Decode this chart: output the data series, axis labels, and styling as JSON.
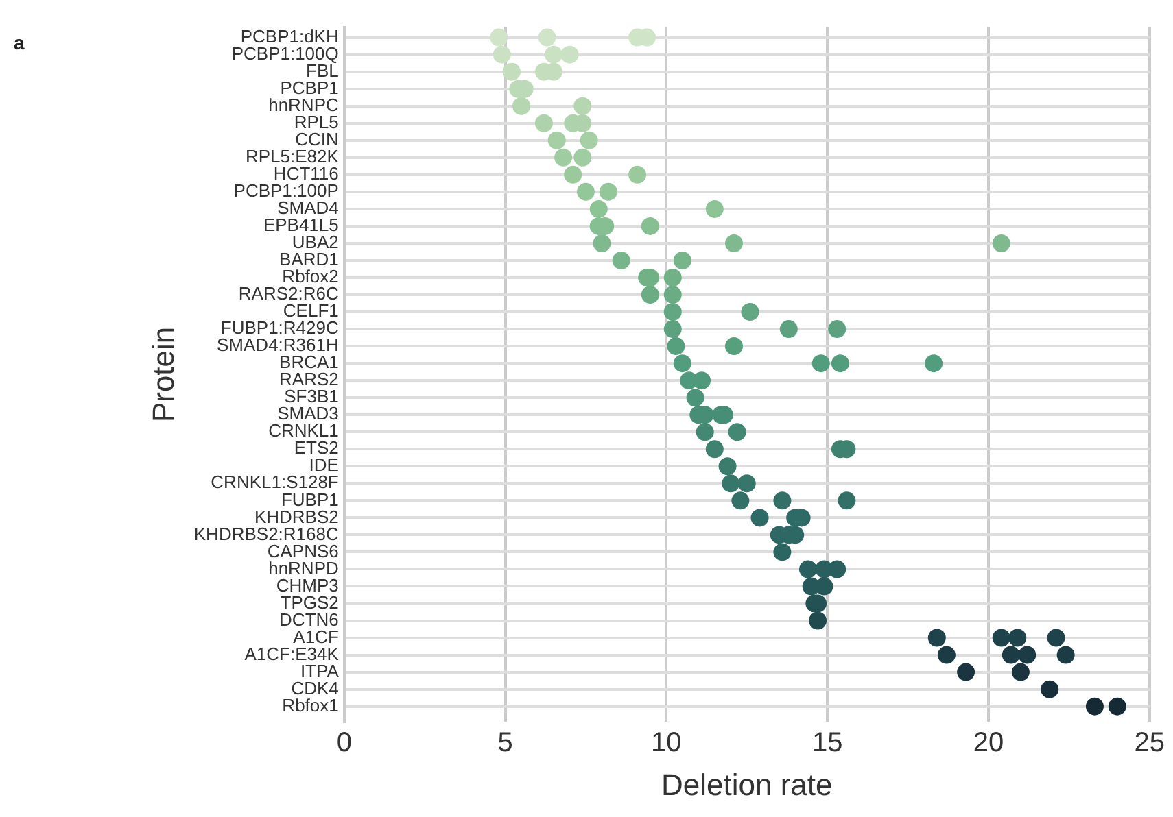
{
  "chart_data": {
    "type": "scatter",
    "orientation": "horizontal",
    "xlabel": "Deletion rate",
    "ylabel": "Protein",
    "annotations": [
      "a"
    ],
    "categories": [
      "PCBP1:dKH",
      "PCBP1:100Q",
      "FBL",
      "PCBP1",
      "hnRNPC",
      "RPL5",
      "CCIN",
      "RPL5:E82K",
      "HCT116",
      "PCBP1:100P",
      "SMAD4",
      "EPB41L5",
      "UBA2",
      "BARD1",
      "Rbfox2",
      "RARS2:R6C",
      "CELF1",
      "FUBP1:R429C",
      "SMAD4:R361H",
      "BRCA1",
      "RARS2",
      "SF3B1",
      "SMAD3",
      "CRNKL1",
      "ETS2",
      "IDE",
      "CRNKL1:S128F",
      "FUBP1",
      "KHDRBS2",
      "KHDRBS2:R168C",
      "CAPNS6",
      "hnRNPD",
      "CHMP3",
      "TPGS2",
      "DCTN6",
      "A1CF",
      "A1CF:E34K",
      "ITPA",
      "CDK4",
      "Rbfox1"
    ],
    "series": [
      {
        "x": [
          "PCBP1:dKH",
          "PCBP1:dKH",
          "PCBP1:dKH",
          "PCBP1:dKH",
          "PCBP1:100Q",
          "PCBP1:100Q",
          "PCBP1:100Q",
          "FBL",
          "FBL",
          "FBL",
          "PCBP1",
          "PCBP1",
          "hnRNPC",
          "hnRNPC",
          "RPL5",
          "RPL5",
          "RPL5",
          "CCIN",
          "CCIN",
          "RPL5:E82K",
          "RPL5:E82K",
          "HCT116",
          "HCT116",
          "PCBP1:100P",
          "PCBP1:100P",
          "SMAD4",
          "SMAD4",
          "EPB41L5",
          "EPB41L5",
          "EPB41L5",
          "UBA2",
          "UBA2",
          "UBA2",
          "BARD1",
          "BARD1",
          "Rbfox2",
          "Rbfox2",
          "Rbfox2",
          "RARS2:R6C",
          "RARS2:R6C",
          "CELF1",
          "CELF1",
          "FUBP1:R429C",
          "FUBP1:R429C",
          "FUBP1:R429C",
          "SMAD4:R361H",
          "SMAD4:R361H",
          "BRCA1",
          "BRCA1",
          "BRCA1",
          "BRCA1",
          "RARS2",
          "RARS2",
          "SF3B1",
          "SMAD3",
          "SMAD3",
          "SMAD3",
          "SMAD3",
          "CRNKL1",
          "CRNKL1",
          "ETS2",
          "ETS2",
          "ETS2",
          "IDE",
          "CRNKL1:S128F",
          "CRNKL1:S128F",
          "FUBP1",
          "FUBP1",
          "FUBP1",
          "KHDRBS2",
          "KHDRBS2",
          "KHDRBS2",
          "KHDRBS2:R168C",
          "KHDRBS2:R168C",
          "KHDRBS2:R168C",
          "CAPNS6",
          "hnRNPD",
          "hnRNPD",
          "hnRNPD",
          "CHMP3",
          "CHMP3",
          "TPGS2",
          "TPGS2",
          "DCTN6",
          "A1CF",
          "A1CF",
          "A1CF",
          "A1CF",
          "A1CF:E34K",
          "A1CF:E34K",
          "A1CF:E34K",
          "A1CF:E34K",
          "ITPA",
          "ITPA",
          "CDK4",
          "Rbfox1",
          "Rbfox1"
        ],
        "values": [
          4.8,
          6.3,
          9.1,
          9.4,
          4.9,
          6.5,
          7.0,
          5.2,
          6.2,
          6.5,
          5.4,
          5.6,
          5.5,
          7.4,
          6.2,
          7.1,
          7.4,
          6.6,
          7.6,
          6.8,
          7.4,
          7.1,
          9.1,
          7.5,
          8.2,
          7.9,
          11.5,
          7.9,
          8.1,
          9.5,
          8.0,
          12.1,
          20.4,
          8.6,
          10.5,
          9.4,
          9.5,
          10.2,
          9.5,
          10.2,
          10.2,
          12.6,
          10.2,
          13.8,
          15.3,
          10.3,
          12.1,
          10.5,
          14.8,
          15.4,
          18.3,
          10.7,
          11.1,
          10.9,
          11.0,
          11.2,
          11.7,
          11.8,
          11.2,
          12.2,
          11.5,
          15.4,
          15.6,
          11.9,
          12.0,
          12.5,
          12.3,
          13.6,
          15.6,
          12.9,
          14.0,
          14.2,
          13.5,
          13.8,
          14.0,
          13.6,
          14.4,
          14.9,
          15.3,
          14.5,
          14.9,
          14.6,
          14.7,
          14.7,
          18.4,
          20.4,
          20.9,
          22.1,
          18.7,
          20.7,
          21.2,
          22.4,
          19.3,
          21.0,
          21.9,
          23.3,
          24.0
        ],
        "colors": [
          "#d0e4c8",
          "#d0e4c8",
          "#d0e4c8",
          "#d0e4c8",
          "#cae1c3",
          "#cae1c3",
          "#cae1c3",
          "#c3ddbd",
          "#c3ddbd",
          "#c3ddbd",
          "#bcdab7",
          "#bcdab7",
          "#b5d6b1",
          "#b5d6b1",
          "#aed3ac",
          "#aed3ac",
          "#aed3ac",
          "#a7cfa6",
          "#a7cfa6",
          "#a0cca1",
          "#a0cca1",
          "#9ac99c",
          "#9ac99c",
          "#93c699",
          "#93c699",
          "#8cc496",
          "#8cc496",
          "#85bf92",
          "#85bf92",
          "#85bf92",
          "#7eba8e",
          "#7eba8e",
          "#7eba8e",
          "#77b68a",
          "#77b68a",
          "#70b186",
          "#70b186",
          "#70b186",
          "#6aac84",
          "#6aac84",
          "#63a782",
          "#63a782",
          "#5ca280",
          "#5ca280",
          "#5ca280",
          "#56a07e",
          "#56a07e",
          "#529d7d",
          "#529d7d",
          "#529d7d",
          "#529d7d",
          "#4f9a7c",
          "#4f9a7c",
          "#4b9479",
          "#478e76",
          "#478e76",
          "#478e76",
          "#478e76",
          "#438873",
          "#438873",
          "#3f8270",
          "#3f8270",
          "#3f8270",
          "#3b7c6d",
          "#37766a",
          "#37766a",
          "#337068",
          "#337068",
          "#337068",
          "#2f6b66",
          "#2f6b66",
          "#2f6b66",
          "#2d6864",
          "#2d6864",
          "#2d6864",
          "#2b6663",
          "#295f5e",
          "#295f5e",
          "#295f5e",
          "#265859",
          "#265859",
          "#245154",
          "#245154",
          "#214a4f",
          "#1f434a",
          "#1f434a",
          "#1f434a",
          "#1f434a",
          "#1c3c45",
          "#1c3c45",
          "#1c3c45",
          "#1c3c45",
          "#1a3540",
          "#1a3540",
          "#172f3b",
          "#152a35",
          "#152a35"
        ]
      }
    ],
    "xlim": [
      0,
      25
    ],
    "xticks": [
      0,
      5,
      10,
      15,
      20,
      25
    ],
    "grid": true,
    "legend": false,
    "marker": "circle"
  }
}
